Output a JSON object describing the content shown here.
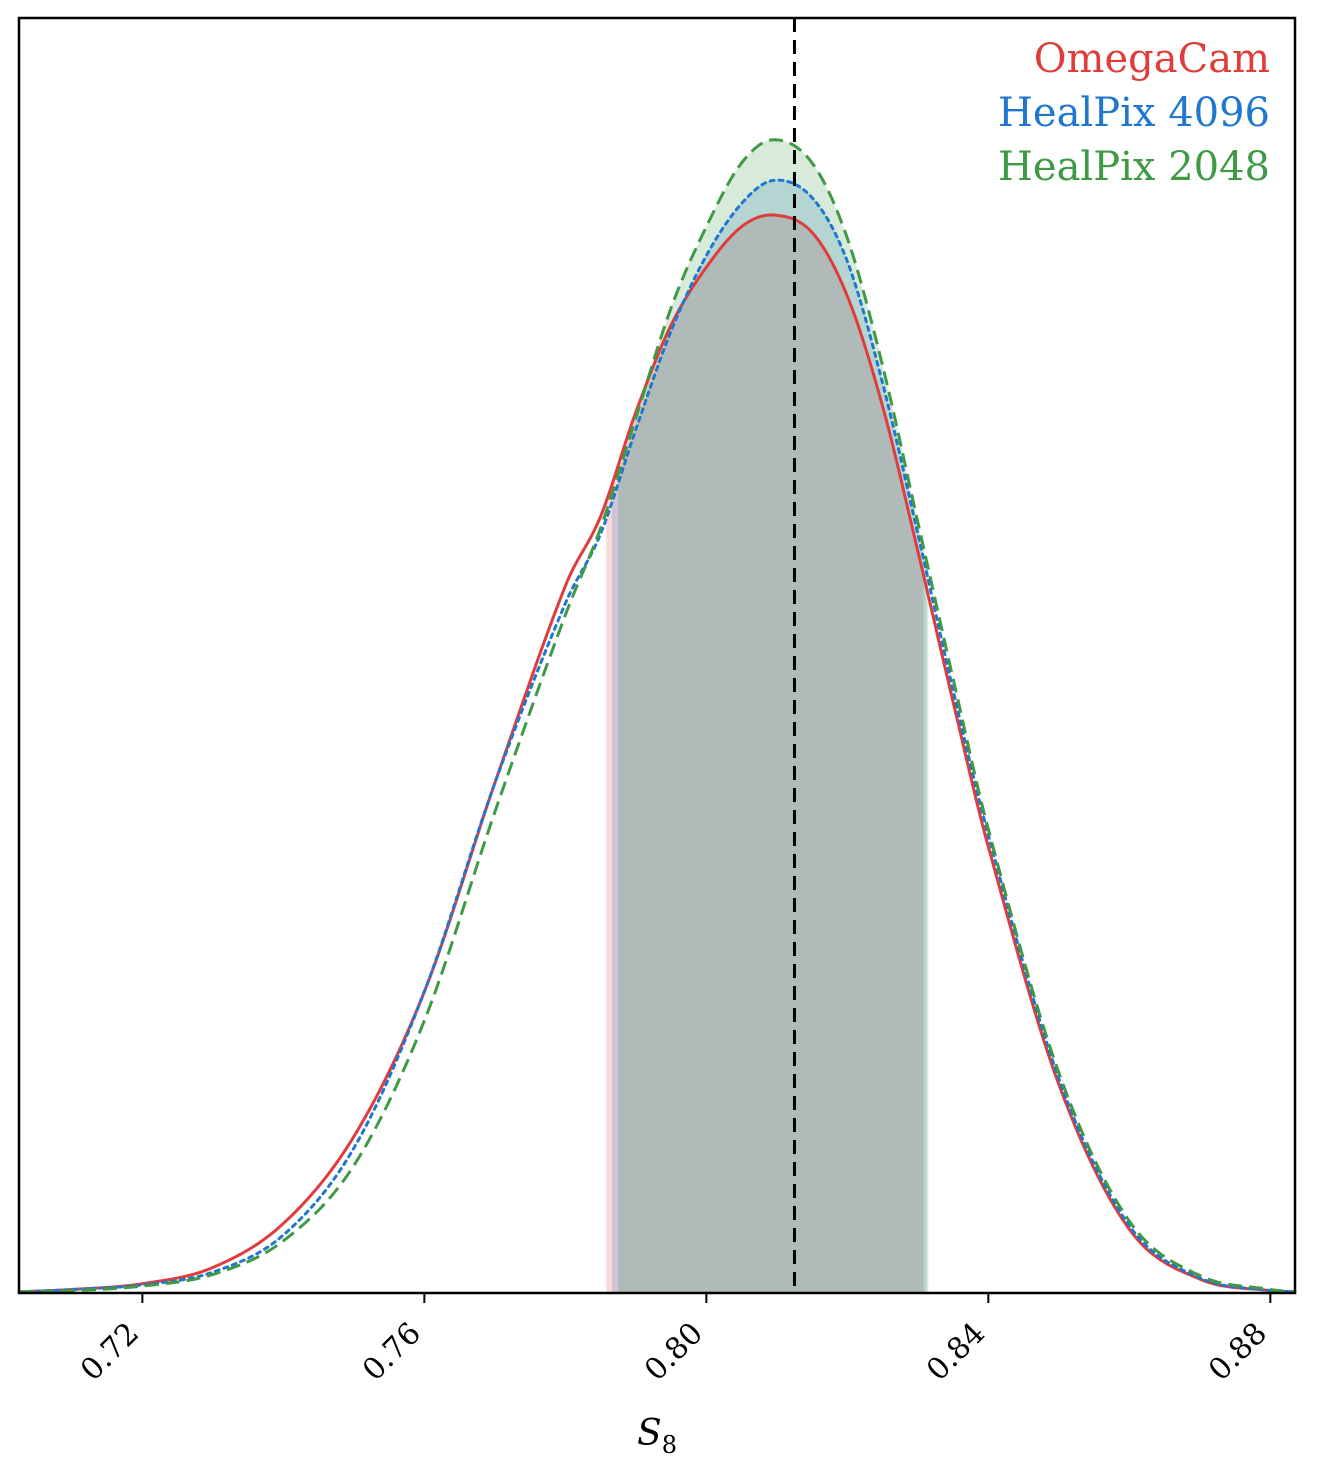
{
  "chart_data": {
    "type": "line",
    "xlabel": "S",
    "xlabel_subscript": "8",
    "ylabel": "",
    "xlim": [
      0.7025,
      0.8835
    ],
    "ylim": [
      0,
      1.1
    ],
    "xticks": [
      "0.72",
      "0.76",
      "0.80",
      "0.84",
      "0.88"
    ],
    "xtick_values": [
      0.72,
      0.76,
      0.8,
      0.84,
      0.88
    ],
    "reference_line": {
      "x": 0.8125,
      "style": "dashed",
      "color": "#000000"
    },
    "legend_position": "top-right",
    "grid": false,
    "series": [
      {
        "name": "OmegaCam",
        "color": "#e03c3c",
        "linestyle": "solid",
        "peak_x": 0.8096,
        "peak_y": 0.93,
        "interval": [
          0.7858,
          0.8308
        ],
        "x": [
          0.7025,
          0.71,
          0.72,
          0.73,
          0.74,
          0.75,
          0.76,
          0.77,
          0.78,
          0.785,
          0.79,
          0.795,
          0.8,
          0.805,
          0.8096,
          0.815,
          0.82,
          0.825,
          0.83,
          0.835,
          0.84,
          0.85,
          0.86,
          0.87,
          0.88,
          0.8835
        ],
        "y": [
          0.001,
          0.003,
          0.008,
          0.022,
          0.06,
          0.135,
          0.26,
          0.44,
          0.61,
          0.67,
          0.76,
          0.835,
          0.885,
          0.92,
          0.93,
          0.915,
          0.86,
          0.765,
          0.64,
          0.51,
          0.385,
          0.18,
          0.055,
          0.012,
          0.002,
          0.001
        ]
      },
      {
        "name": "HealPix 4096",
        "color": "#1f77d0",
        "linestyle": "dotted",
        "peak_x": 0.8096,
        "peak_y": 0.96,
        "interval": [
          0.7866,
          0.8312
        ],
        "x": [
          0.7025,
          0.71,
          0.72,
          0.73,
          0.74,
          0.75,
          0.76,
          0.77,
          0.78,
          0.785,
          0.79,
          0.795,
          0.8,
          0.805,
          0.8096,
          0.815,
          0.82,
          0.825,
          0.83,
          0.835,
          0.84,
          0.85,
          0.86,
          0.87,
          0.88,
          0.8835
        ],
        "y": [
          0.001,
          0.003,
          0.007,
          0.018,
          0.05,
          0.125,
          0.26,
          0.44,
          0.595,
          0.655,
          0.745,
          0.83,
          0.895,
          0.94,
          0.96,
          0.945,
          0.89,
          0.785,
          0.655,
          0.52,
          0.395,
          0.185,
          0.058,
          0.013,
          0.002,
          0.001
        ]
      },
      {
        "name": "HealPix 2048",
        "color": "#3e9a44",
        "linestyle": "dashed",
        "peak_x": 0.8096,
        "peak_y": 0.995,
        "interval": [
          0.7875,
          0.8315
        ],
        "x": [
          0.7025,
          0.71,
          0.72,
          0.73,
          0.74,
          0.75,
          0.76,
          0.77,
          0.78,
          0.785,
          0.79,
          0.795,
          0.8,
          0.805,
          0.8096,
          0.815,
          0.82,
          0.825,
          0.83,
          0.835,
          0.84,
          0.85,
          0.86,
          0.87,
          0.88,
          0.8835
        ],
        "y": [
          0.001,
          0.002,
          0.006,
          0.016,
          0.045,
          0.11,
          0.235,
          0.415,
          0.585,
          0.66,
          0.755,
          0.85,
          0.92,
          0.975,
          0.995,
          0.975,
          0.91,
          0.8,
          0.665,
          0.53,
          0.4,
          0.19,
          0.062,
          0.015,
          0.003,
          0.001
        ]
      }
    ]
  }
}
